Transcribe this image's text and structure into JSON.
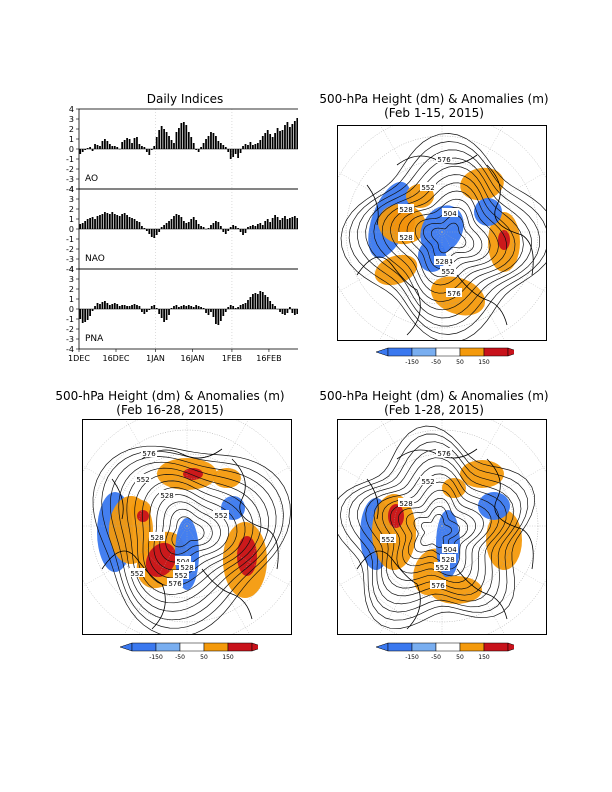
{
  "daily_indices": {
    "title": "Daily Indices",
    "x_ticks": [
      "1DEC",
      "16DEC",
      "1JAN",
      "16JAN",
      "1FEB",
      "16FEB"
    ],
    "y_ticks": [
      "4",
      "3",
      "2",
      "1",
      "0",
      "-1",
      "-2",
      "-3",
      "-4"
    ]
  },
  "maps": [
    {
      "title": "500-hPa Height (dm) & Anomalies (m)",
      "subtitle": "(Feb 1-15, 2015)",
      "contour_labels": [
        "576",
        "552",
        "528",
        "504",
        "528",
        "504",
        "528",
        "552",
        "576"
      ]
    },
    {
      "title": "500-hPa Height (dm) & Anomalies (m)",
      "subtitle": "(Feb 16-28, 2015)",
      "contour_labels": [
        "576",
        "552",
        "528",
        "552",
        "528",
        "504",
        "528",
        "552",
        "576",
        "552"
      ]
    },
    {
      "title": "500-hPa Height (dm) & Anomalies (m)",
      "subtitle": "(Feb 1-28, 2015)",
      "contour_labels": [
        "576",
        "552",
        "528",
        "504",
        "528",
        "552",
        "552",
        "576"
      ]
    }
  ],
  "colorbar": {
    "labels": [
      "-150",
      "-50",
      "50",
      "150"
    ],
    "colors": [
      "#3a78ef",
      "#79aef0",
      "#ffffff",
      "#f49a0c",
      "#c8121b"
    ]
  },
  "colors": {
    "positive": "#f49a0c",
    "strong_positive": "#c8121b",
    "negative": "#3a78ef",
    "weak_negative": "#79aef0"
  },
  "chart_data": [
    {
      "type": "bar",
      "name_printed": "AO",
      "label": "AO",
      "ylim": [
        -4,
        4
      ],
      "x_start": "2014-12-01",
      "x_end": "2015-02-28",
      "values": [
        -0.5,
        -0.3,
        -0.1,
        0.1,
        0.2,
        -0.2,
        0.5,
        0.4,
        0.3,
        0.8,
        1.0,
        0.8,
        0.5,
        0.3,
        0.3,
        0.2,
        0.0,
        0.7,
        0.9,
        1.1,
        1.0,
        0.6,
        1.1,
        1.2,
        0.5,
        0.3,
        0.2,
        -0.3,
        -0.6,
        -0.1,
        0.3,
        1.2,
        1.9,
        2.3,
        2.0,
        1.7,
        1.3,
        0.9,
        0.6,
        1.7,
        2.1,
        2.6,
        2.7,
        2.4,
        1.7,
        1.2,
        0.6,
        -0.1,
        -0.3,
        0.2,
        0.6,
        1.0,
        1.3,
        1.7,
        1.6,
        1.3,
        0.8,
        0.6,
        0.4,
        0.2,
        -0.3,
        -1.0,
        -0.8,
        -0.5,
        -0.9,
        -0.4,
        0.3,
        0.5,
        0.4,
        0.7,
        0.4,
        0.5,
        0.6,
        0.9,
        1.3,
        1.6,
        1.9,
        1.5,
        1.2,
        1.6,
        2.1,
        1.8,
        1.9,
        2.4,
        2.7,
        2.2,
        2.5,
        2.8,
        3.1,
        3.4
      ]
    },
    {
      "type": "bar",
      "name_printed": "NAO",
      "label": "NAO",
      "ylim": [
        -4,
        4
      ],
      "x_start": "2014-12-01",
      "x_end": "2015-02-28",
      "values": [
        0.5,
        0.6,
        0.8,
        1.0,
        1.1,
        1.2,
        1.0,
        1.3,
        1.4,
        1.5,
        1.7,
        1.6,
        1.5,
        1.7,
        1.5,
        1.4,
        1.3,
        1.5,
        1.6,
        1.4,
        1.2,
        1.1,
        1.0,
        0.8,
        0.7,
        0.3,
        0.1,
        -0.2,
        -0.5,
        -0.8,
        -0.9,
        -0.6,
        -0.3,
        0.2,
        0.4,
        0.6,
        0.8,
        1.0,
        1.3,
        1.5,
        1.4,
        1.2,
        0.8,
        0.6,
        0.7,
        1.0,
        1.2,
        0.9,
        0.5,
        0.3,
        0.2,
        0.0,
        0.1,
        0.4,
        0.6,
        0.8,
        0.7,
        0.3,
        -0.3,
        -0.5,
        -0.2,
        0.2,
        0.4,
        0.3,
        0.1,
        -0.3,
        -0.6,
        -0.4,
        0.2,
        0.3,
        0.4,
        0.3,
        0.5,
        0.6,
        0.4,
        0.8,
        1.0,
        0.7,
        1.1,
        1.4,
        1.2,
        0.9,
        1.1,
        1.3,
        1.0,
        1.1,
        1.2,
        1.3,
        1.1,
        1.4
      ]
    },
    {
      "type": "bar",
      "name_printed": "PNA",
      "label": "PNA",
      "ylim": [
        -4,
        4
      ],
      "x_start": "2014-12-01",
      "x_end": "2015-02-28",
      "values": [
        -1.0,
        -1.4,
        -1.3,
        -1.1,
        -0.7,
        -0.2,
        0.3,
        0.6,
        0.5,
        0.7,
        0.8,
        0.6,
        0.4,
        0.5,
        0.6,
        0.5,
        0.3,
        0.4,
        0.4,
        0.3,
        0.3,
        0.4,
        0.5,
        0.4,
        0.3,
        -0.3,
        -0.5,
        -0.3,
        -0.1,
        0.3,
        0.4,
        0.1,
        -0.5,
        -0.9,
        -1.3,
        -1.1,
        -0.6,
        0.1,
        0.3,
        0.4,
        0.2,
        0.3,
        0.4,
        0.3,
        0.4,
        0.3,
        0.2,
        0.4,
        0.3,
        0.2,
        0.1,
        -0.4,
        -0.6,
        -0.3,
        -0.8,
        -1.5,
        -1.6,
        -1.2,
        -0.7,
        -0.3,
        0.2,
        0.4,
        0.3,
        0.1,
        0.2,
        0.4,
        0.5,
        0.6,
        0.9,
        1.2,
        1.5,
        1.6,
        1.5,
        1.8,
        1.7,
        1.4,
        1.2,
        0.8,
        0.5,
        0.3,
        0.0,
        -0.3,
        -0.5,
        -0.6,
        -0.4,
        0.2,
        -0.4,
        -0.6,
        -0.5,
        -0.7
      ]
    }
  ]
}
